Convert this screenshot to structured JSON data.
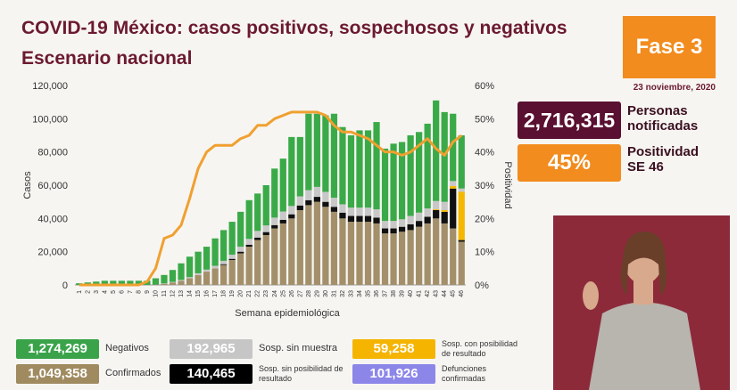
{
  "header": {
    "title": "COVID-19 México: casos positivos, sospechosos y negativos",
    "subtitle": "Escenario nacional"
  },
  "badges": {
    "phase": "Fase 3",
    "date": "23 noviembre, 2020",
    "notified": "2,716,315",
    "notified_label": "Personas notificadas",
    "positivity": "45%",
    "positivity_label": "Positividad SE 46"
  },
  "summary": [
    {
      "value": "1,274,269",
      "label": "Negativos",
      "color": "#3aa34a"
    },
    {
      "value": "192,965",
      "label": "Sosp. sin muestra",
      "color": "#c6c6c6"
    },
    {
      "value": "59,258",
      "label": "Sosp. con posibilidad de resultado",
      "color": "#f5b400"
    },
    {
      "value": "1,049,358",
      "label": "Confirmados",
      "color": "#a08a60"
    },
    {
      "value": "140,465",
      "label": "Sosp. sin posibilidad de resultado",
      "color": "#000000"
    },
    {
      "value": "101,926",
      "label": "Defunciones confirmadas",
      "color": "#8c86e8"
    }
  ],
  "chart_data": {
    "type": "bar",
    "stacked": true,
    "x_label": "Semana epidemiológica",
    "y_label": "Casos",
    "y2_label": "Positividad",
    "categories": [
      "1",
      "2",
      "3",
      "4",
      "5",
      "6",
      "7",
      "8",
      "9",
      "10",
      "11",
      "12",
      "13",
      "14",
      "15",
      "16",
      "17",
      "18",
      "19",
      "20",
      "21",
      "22",
      "23",
      "24",
      "25",
      "26",
      "27",
      "28",
      "29",
      "30",
      "31",
      "32",
      "33",
      "34",
      "35",
      "36",
      "37",
      "38",
      "39",
      "40",
      "41",
      "42",
      "43",
      "44",
      "45",
      "46"
    ],
    "ylim": [
      0,
      120000
    ],
    "yticks": [
      {
        "value": 0,
        "label": "0"
      },
      {
        "value": 20000,
        "label": "20,000"
      },
      {
        "value": 40000,
        "label": "40,000"
      },
      {
        "value": 60000,
        "label": "60,000"
      },
      {
        "value": 80000,
        "label": "80,000"
      },
      {
        "value": 100000,
        "label": "100,000"
      },
      {
        "value": 120000,
        "label": "120,000"
      }
    ],
    "y2lim": [
      0,
      60
    ],
    "y2ticks": [
      {
        "value": 0,
        "label": "0%"
      },
      {
        "value": 10,
        "label": "10%"
      },
      {
        "value": 20,
        "label": "20%"
      },
      {
        "value": 30,
        "label": "30%"
      },
      {
        "value": 40,
        "label": "40%"
      },
      {
        "value": 50,
        "label": "50%"
      },
      {
        "value": 60,
        "label": "60%"
      }
    ],
    "grid": false,
    "series": [
      {
        "name": "Confirmados",
        "color": "#a3906b",
        "values": [
          5,
          5,
          5,
          5,
          5,
          5,
          5,
          10,
          30,
          200,
          700,
          1500,
          2500,
          4000,
          6000,
          8000,
          10000,
          12000,
          15000,
          19000,
          23000,
          27000,
          30000,
          34000,
          37000,
          40000,
          45000,
          48000,
          50000,
          47000,
          44000,
          40000,
          38000,
          38000,
          38000,
          37000,
          31000,
          31000,
          32000,
          33000,
          35000,
          37000,
          40000,
          37000,
          34000,
          26000
        ]
      },
      {
        "name": "Sosp. sin posibilidad de resultado",
        "color": "#111111",
        "values": [
          0,
          0,
          0,
          0,
          0,
          0,
          0,
          0,
          0,
          0,
          0,
          0,
          0,
          0,
          0,
          0,
          0,
          500,
          700,
          1000,
          1200,
          1500,
          1800,
          2000,
          2200,
          2500,
          2800,
          3000,
          3000,
          3000,
          3000,
          3500,
          3500,
          3500,
          3500,
          3500,
          3000,
          3000,
          3000,
          3500,
          3500,
          4000,
          5000,
          7000,
          24000,
          1000
        ]
      },
      {
        "name": "Sosp. con posibilidad de resultado",
        "color": "#f5b800",
        "values": [
          0,
          0,
          0,
          0,
          0,
          0,
          0,
          0,
          0,
          0,
          0,
          0,
          0,
          0,
          0,
          0,
          0,
          0,
          0,
          0,
          0,
          0,
          0,
          0,
          0,
          0,
          0,
          0,
          0,
          0,
          0,
          0,
          0,
          0,
          0,
          0,
          0,
          0,
          0,
          0,
          0,
          0,
          500,
          1000,
          1500,
          29000
        ]
      },
      {
        "name": "Sosp. sin muestra",
        "color": "#c8c8c8",
        "values": [
          0,
          0,
          0,
          0,
          0,
          0,
          0,
          0,
          0,
          0,
          200,
          300,
          500,
          700,
          1000,
          1200,
          1500,
          2000,
          2500,
          3000,
          3500,
          4000,
          4000,
          4500,
          5000,
          5000,
          5500,
          6000,
          6000,
          6000,
          5500,
          5000,
          5000,
          5000,
          5000,
          5000,
          4500,
          4500,
          4500,
          5000,
          5000,
          5000,
          5000,
          5000,
          3000,
          2000
        ]
      },
      {
        "name": "Negativos",
        "color": "#3aaa48",
        "values": [
          1000,
          1500,
          2000,
          2500,
          2500,
          2500,
          2500,
          2500,
          2500,
          3800,
          5100,
          7200,
          10000,
          12300,
          13000,
          13800,
          16500,
          18500,
          19800,
          21000,
          23300,
          22500,
          24200,
          29500,
          31800,
          41500,
          35700,
          46000,
          44000,
          46000,
          50500,
          46500,
          43500,
          46500,
          46500,
          52500,
          43500,
          46500,
          46500,
          48500,
          48500,
          51000,
          60500,
          54000,
          40500,
          32000
        ]
      },
      {
        "name": "Positividad",
        "type": "line",
        "axis": "y2",
        "color": "#f0a030",
        "values": [
          0,
          0,
          0,
          0,
          0,
          0,
          0,
          0,
          1,
          5,
          14,
          15,
          18,
          26,
          35,
          40,
          42,
          42,
          42,
          44,
          45,
          48,
          48,
          50,
          51,
          52,
          52,
          52,
          52,
          51,
          48,
          46,
          46,
          45,
          44,
          42,
          40,
          40,
          39,
          40,
          42,
          44,
          41,
          39,
          43,
          45
        ]
      }
    ]
  }
}
